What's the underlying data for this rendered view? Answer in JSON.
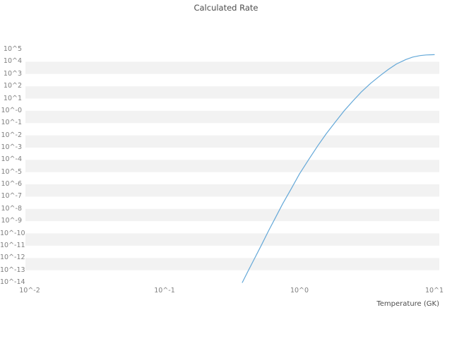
{
  "chart_data": {
    "type": "line",
    "title": "Calculated Rate",
    "xlabel": "Temperature (GK)",
    "ylabel": "",
    "x_scale": "log",
    "y_scale": "log",
    "xlim_log10": [
      -2,
      1
    ],
    "ylim_log10": [
      -14,
      5
    ],
    "grid": "horizontal-bands",
    "legend": "none",
    "grid_band_color": "#f2f2f2",
    "line_color": "#64a8d8",
    "x_tick_labels": [
      "10^-2",
      "10^-1",
      "10^0",
      "10^1"
    ],
    "x_tick_log10": [
      -2,
      -1,
      0,
      1
    ],
    "y_tick_labels": [
      "10^5",
      "10^4",
      "10^3",
      "10^2",
      "10^1",
      "10^-0",
      "10^-1",
      "10^-2",
      "10^-3",
      "10^-4",
      "10^-5",
      "10^-6",
      "10^-7",
      "10^-8",
      "10^-9",
      "10^-10",
      "10^-11",
      "10^-12",
      "10^-13",
      "10^-14"
    ],
    "y_tick_log10": [
      5,
      4,
      3,
      2,
      1,
      0,
      -1,
      -2,
      -3,
      -4,
      -5,
      -6,
      -7,
      -8,
      -9,
      -10,
      -11,
      -12,
      -13,
      -14
    ],
    "series": [
      {
        "name": "Calculated Rate",
        "temperature_GK": [
          0.377,
          0.417,
          0.462,
          0.525,
          0.589,
          0.661,
          0.75,
          0.871,
          1.0,
          1.175,
          1.368,
          1.585,
          1.849,
          2.138,
          2.5,
          2.884,
          3.381,
          3.981,
          4.571,
          5.248,
          6.166,
          6.918,
          7.852,
          8.71,
          9.638,
          10.0
        ],
        "rate_log10": [
          -14.0,
          -13.05,
          -12.1,
          -10.9,
          -9.8,
          -8.75,
          -7.6,
          -6.35,
          -5.15,
          -3.95,
          -2.85,
          -1.85,
          -0.9,
          -0.02,
          0.82,
          1.55,
          2.25,
          2.88,
          3.38,
          3.82,
          4.18,
          4.38,
          4.5,
          4.55,
          4.57,
          4.575
        ]
      }
    ]
  }
}
